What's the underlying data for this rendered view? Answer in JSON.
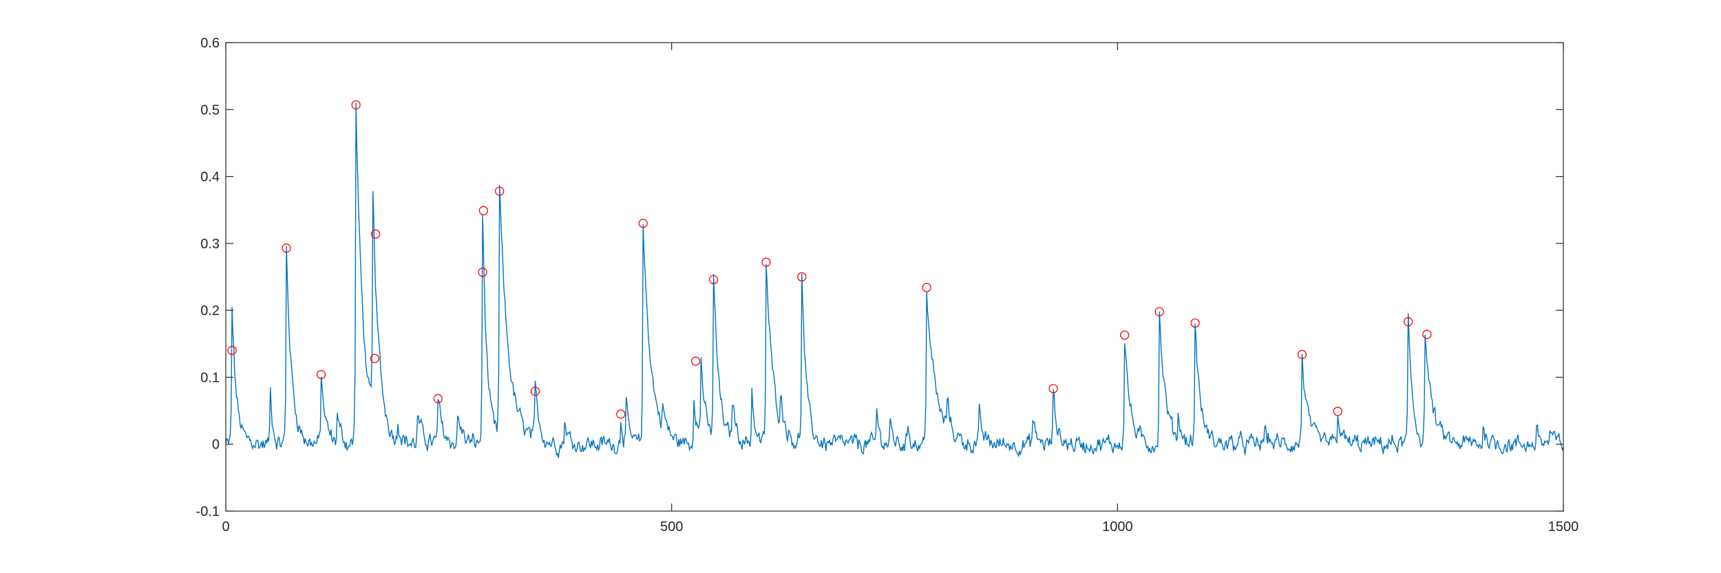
{
  "chart_data": {
    "type": "line",
    "title": "",
    "xlabel": "",
    "ylabel": "",
    "xlim": [
      0,
      1500
    ],
    "ylim": [
      -0.1,
      0.6
    ],
    "xticks": [
      0,
      500,
      1000,
      1500
    ],
    "yticks": [
      -0.1,
      0,
      0.1,
      0.2,
      0.3,
      0.4,
      0.5,
      0.6
    ],
    "xtick_labels": [
      "0",
      "500",
      "1000",
      "1500"
    ],
    "ytick_labels": [
      "-0.1",
      "0",
      "0.1",
      "0.2",
      "0.3",
      "0.4",
      "0.5",
      "0.6"
    ],
    "grid": false,
    "box": true,
    "line_color": "#0072BD",
    "marker_color": "#FF0000",
    "signal_shape": {
      "length": 1500,
      "noise_amplitude": 0.012,
      "events": [
        [
          7,
          0.2,
          5
        ],
        [
          50,
          0.08,
          3
        ],
        [
          68,
          0.29,
          6
        ],
        [
          107,
          0.1,
          5
        ],
        [
          125,
          0.045,
          4
        ],
        [
          146,
          0.505,
          8
        ],
        [
          165,
          0.32,
          7
        ],
        [
          193,
          0.03,
          4
        ],
        [
          215,
          0.04,
          6
        ],
        [
          238,
          0.065,
          5
        ],
        [
          260,
          0.04,
          6
        ],
        [
          288,
          0.345,
          5
        ],
        [
          307,
          0.375,
          10
        ],
        [
          347,
          0.075,
          5
        ],
        [
          380,
          0.035,
          4
        ],
        [
          443,
          0.04,
          3
        ],
        [
          449,
          0.055,
          3
        ],
        [
          468,
          0.325,
          9
        ],
        [
          490,
          0.035,
          4
        ],
        [
          525,
          0.08,
          4
        ],
        [
          533,
          0.12,
          5
        ],
        [
          547,
          0.245,
          6
        ],
        [
          568,
          0.06,
          5
        ],
        [
          590,
          0.085,
          3
        ],
        [
          606,
          0.27,
          8
        ],
        [
          622,
          0.04,
          5
        ],
        [
          646,
          0.25,
          5
        ],
        [
          730,
          0.05,
          3
        ],
        [
          745,
          0.03,
          3
        ],
        [
          765,
          0.03,
          3
        ],
        [
          786,
          0.23,
          10
        ],
        [
          809,
          0.05,
          4
        ],
        [
          845,
          0.04,
          4
        ],
        [
          905,
          0.035,
          4
        ],
        [
          928,
          0.08,
          4
        ],
        [
          1008,
          0.162,
          6
        ],
        [
          1047,
          0.195,
          7
        ],
        [
          1068,
          0.035,
          4
        ],
        [
          1087,
          0.18,
          6
        ],
        [
          1165,
          0.02,
          5
        ],
        [
          1207,
          0.132,
          6
        ],
        [
          1247,
          0.045,
          4
        ],
        [
          1326,
          0.18,
          5
        ],
        [
          1345,
          0.16,
          8
        ],
        [
          1410,
          0.025,
          5
        ],
        [
          1470,
          0.02,
          4
        ],
        [
          1485,
          0.018,
          4
        ]
      ]
    },
    "peaks": [
      {
        "x": 7,
        "y": 0.14
      },
      {
        "x": 68,
        "y": 0.293
      },
      {
        "x": 107,
        "y": 0.104
      },
      {
        "x": 146,
        "y": 0.507
      },
      {
        "x": 167,
        "y": 0.128
      },
      {
        "x": 168,
        "y": 0.314
      },
      {
        "x": 238,
        "y": 0.068
      },
      {
        "x": 288,
        "y": 0.257
      },
      {
        "x": 289,
        "y": 0.349
      },
      {
        "x": 307,
        "y": 0.378
      },
      {
        "x": 347,
        "y": 0.079
      },
      {
        "x": 443,
        "y": 0.045
      },
      {
        "x": 468,
        "y": 0.33
      },
      {
        "x": 527,
        "y": 0.124
      },
      {
        "x": 547,
        "y": 0.246
      },
      {
        "x": 606,
        "y": 0.272
      },
      {
        "x": 646,
        "y": 0.25
      },
      {
        "x": 786,
        "y": 0.234
      },
      {
        "x": 928,
        "y": 0.083
      },
      {
        "x": 1008,
        "y": 0.163
      },
      {
        "x": 1047,
        "y": 0.198
      },
      {
        "x": 1087,
        "y": 0.181
      },
      {
        "x": 1207,
        "y": 0.134
      },
      {
        "x": 1247,
        "y": 0.049
      },
      {
        "x": 1326,
        "y": 0.183
      },
      {
        "x": 1347,
        "y": 0.164
      }
    ]
  }
}
